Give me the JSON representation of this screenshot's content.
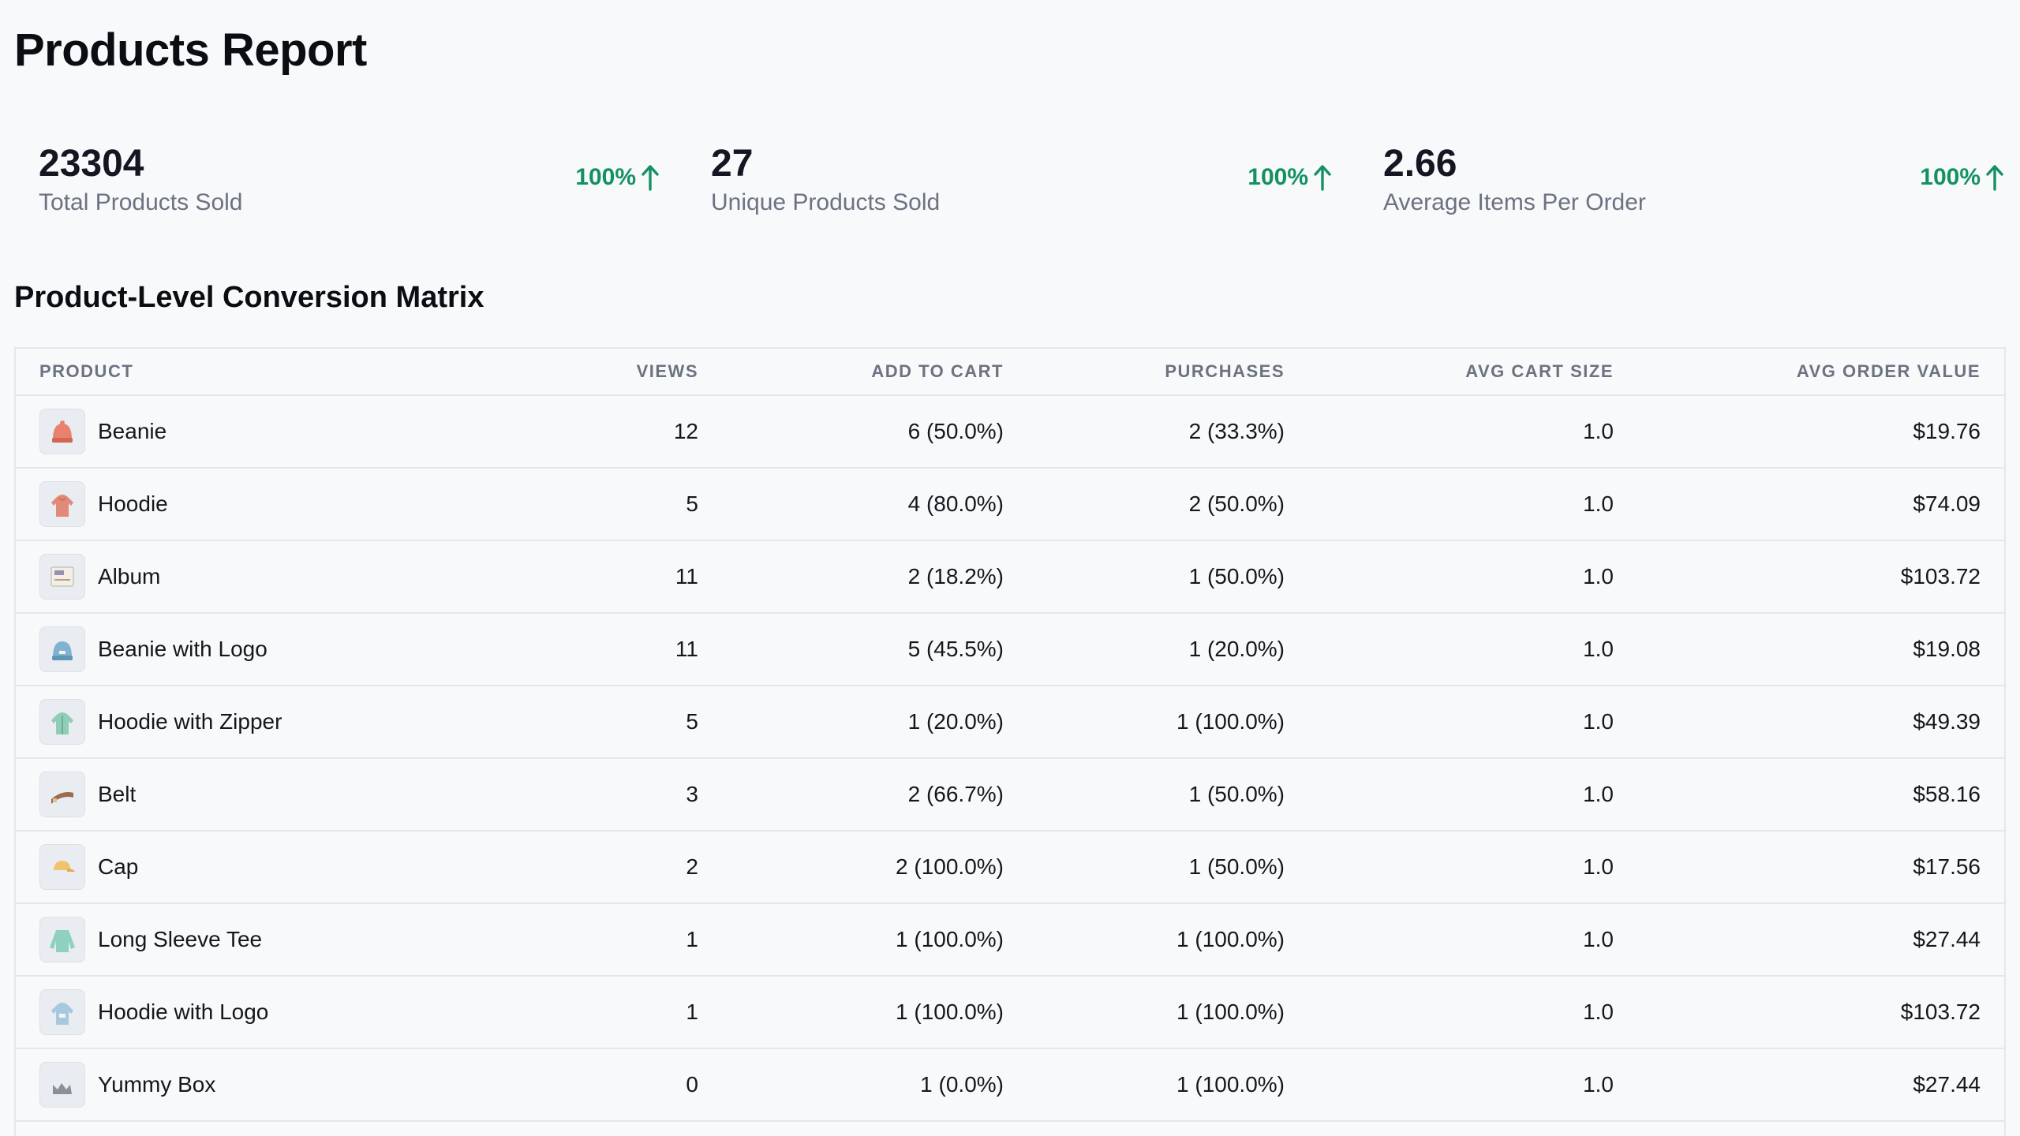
{
  "page": {
    "title": "Products Report"
  },
  "stats": [
    {
      "value": "23304",
      "label": "Total Products Sold",
      "change": "100%"
    },
    {
      "value": "27",
      "label": "Unique Products Sold",
      "change": "100%"
    },
    {
      "value": "2.66",
      "label": "Average Items Per Order",
      "change": "100%"
    }
  ],
  "colors": {
    "positive": "#149162",
    "border": "#e4e7ec",
    "muted": "#6b7280"
  },
  "matrix": {
    "title": "Product-Level Conversion Matrix",
    "headers": {
      "product": "PRODUCT",
      "views": "VIEWS",
      "add_to_cart": "ADD TO CART",
      "purchases": "PURCHASES",
      "avg_cart_size": "AVG CART SIZE",
      "avg_order_value": "AVG ORDER VALUE"
    },
    "rows": [
      {
        "icon": "beanie-icon",
        "name": "Beanie",
        "views": "12",
        "add_to_cart": "6 (50.0%)",
        "purchases": "2 (33.3%)",
        "avg_cart_size": "1.0",
        "avg_order_value": "$19.76"
      },
      {
        "icon": "hoodie-icon",
        "name": "Hoodie",
        "views": "5",
        "add_to_cart": "4 (80.0%)",
        "purchases": "2 (50.0%)",
        "avg_cart_size": "1.0",
        "avg_order_value": "$74.09"
      },
      {
        "icon": "album-icon",
        "name": "Album",
        "views": "11",
        "add_to_cart": "2 (18.2%)",
        "purchases": "1 (50.0%)",
        "avg_cart_size": "1.0",
        "avg_order_value": "$103.72"
      },
      {
        "icon": "beanie-with-logo-icon",
        "name": "Beanie with Logo",
        "views": "11",
        "add_to_cart": "5 (45.5%)",
        "purchases": "1 (20.0%)",
        "avg_cart_size": "1.0",
        "avg_order_value": "$19.08"
      },
      {
        "icon": "hoodie-with-zipper-icon",
        "name": "Hoodie with Zipper",
        "views": "5",
        "add_to_cart": "1 (20.0%)",
        "purchases": "1 (100.0%)",
        "avg_cart_size": "1.0",
        "avg_order_value": "$49.39"
      },
      {
        "icon": "belt-icon",
        "name": "Belt",
        "views": "3",
        "add_to_cart": "2 (66.7%)",
        "purchases": "1 (50.0%)",
        "avg_cart_size": "1.0",
        "avg_order_value": "$58.16"
      },
      {
        "icon": "cap-icon",
        "name": "Cap",
        "views": "2",
        "add_to_cart": "2 (100.0%)",
        "purchases": "1 (50.0%)",
        "avg_cart_size": "1.0",
        "avg_order_value": "$17.56"
      },
      {
        "icon": "long-sleeve-tee-icon",
        "name": "Long Sleeve Tee",
        "views": "1",
        "add_to_cart": "1 (100.0%)",
        "purchases": "1 (100.0%)",
        "avg_cart_size": "1.0",
        "avg_order_value": "$27.44"
      },
      {
        "icon": "hoodie-with-logo-icon",
        "name": "Hoodie with Logo",
        "views": "1",
        "add_to_cart": "1 (100.0%)",
        "purchases": "1 (100.0%)",
        "avg_cart_size": "1.0",
        "avg_order_value": "$103.72"
      },
      {
        "icon": "image-placeholder-icon",
        "name": "Yummy Box",
        "views": "0",
        "add_to_cart": "1 (0.0%)",
        "purchases": "1 (100.0%)",
        "avg_cart_size": "1.0",
        "avg_order_value": "$27.44"
      }
    ]
  }
}
